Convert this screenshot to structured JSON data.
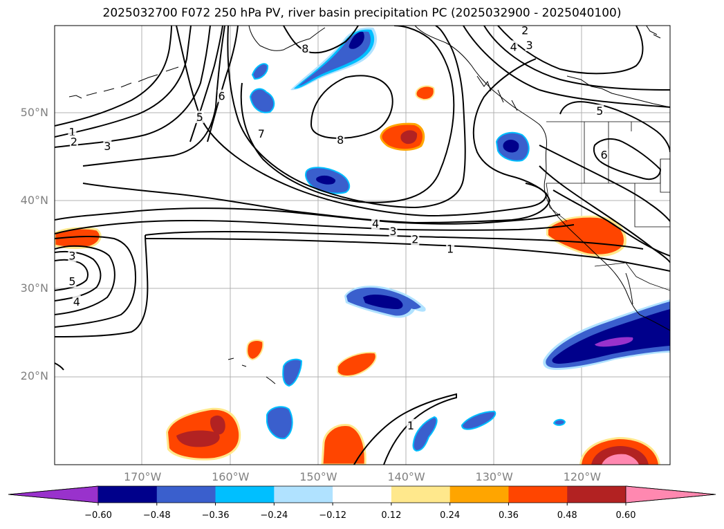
{
  "title": "2025032700 F072 250 hPa PV, river basin precipitation PC (2025032900 - 2025040100)",
  "lat_labels": [
    {
      "label": "50°N",
      "lat": 50
    },
    {
      "label": "40°N",
      "lat": 40
    },
    {
      "label": "30°N",
      "lat": 30
    },
    {
      "label": "20°N",
      "lat": 20
    }
  ],
  "lon_labels": [
    {
      "label": "170°W",
      "lon": -170
    },
    {
      "label": "160°W",
      "lon": -160
    },
    {
      "label": "150°W",
      "lon": -150
    },
    {
      "label": "140°W",
      "lon": -140
    },
    {
      "label": "130°W",
      "lon": -130
    },
    {
      "label": "120°W",
      "lon": -120
    }
  ],
  "map_extent": {
    "lon_min": -180,
    "lon_max": -110,
    "lat_min": 10,
    "lat_max": 60
  },
  "colorbar": {
    "ticks": [
      "−0.60",
      "−0.48",
      "−0.36",
      "−0.24",
      "−0.12",
      "0.12",
      "0.24",
      "0.36",
      "0.48",
      "0.60"
    ],
    "colors": [
      "#9932cc",
      "#00008b",
      "#3a5fcd",
      "#00bfff",
      "#b0e2ff",
      "#ffffff",
      "#ffe88c",
      "#ffa500",
      "#ff4500",
      "#b22222",
      "#ff88b0"
    ]
  },
  "pv_contour_labels": [
    "1",
    "2",
    "3",
    "4",
    "5",
    "6",
    "7",
    "8"
  ],
  "contour_label_positions": [
    {
      "t": "1",
      "lon": -178,
      "lat": 47.9
    },
    {
      "t": "2",
      "lon": -177.8,
      "lat": 46.8
    },
    {
      "t": "3",
      "lon": -174,
      "lat": 46.3
    },
    {
      "t": "5",
      "lon": -163.5,
      "lat": 49.6
    },
    {
      "t": "6",
      "lon": -161,
      "lat": 52
    },
    {
      "t": "7",
      "lon": -156.5,
      "lat": 47.7
    },
    {
      "t": "8",
      "lon": -151.5,
      "lat": 57.4
    },
    {
      "t": "8",
      "lon": -147.5,
      "lat": 47
    },
    {
      "t": "4",
      "lon": -143.5,
      "lat": 37.5
    },
    {
      "t": "3",
      "lon": -141.5,
      "lat": 36.6
    },
    {
      "t": "2",
      "lon": -139,
      "lat": 35.7
    },
    {
      "t": "1",
      "lon": -135,
      "lat": 34.6
    },
    {
      "t": "3",
      "lon": -178,
      "lat": 33.8
    },
    {
      "t": "5",
      "lon": -178,
      "lat": 30.9
    },
    {
      "t": "4",
      "lon": -177.5,
      "lat": 28.6
    },
    {
      "t": "2",
      "lon": -126.5,
      "lat": 59.5
    },
    {
      "t": "4",
      "lon": -127.8,
      "lat": 57.6
    },
    {
      "t": "3",
      "lon": -126,
      "lat": 57.8
    },
    {
      "t": "5",
      "lon": -118,
      "lat": 50.3
    },
    {
      "t": "6",
      "lon": -117.5,
      "lat": 45.3
    },
    {
      "t": "1",
      "lon": -139.5,
      "lat": 14.5
    }
  ]
}
